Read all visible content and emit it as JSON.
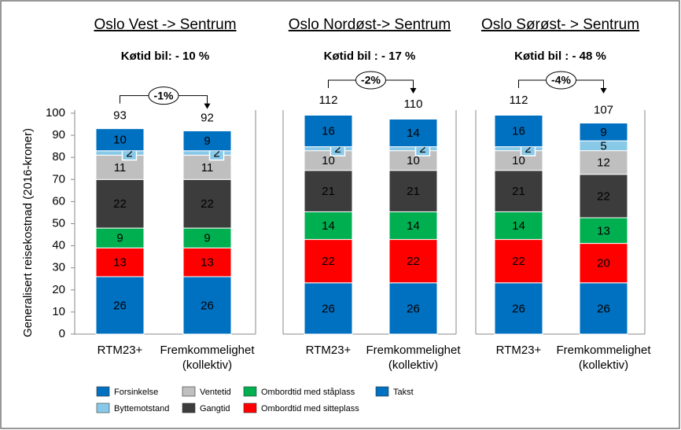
{
  "chart_data": {
    "type": "stacked_bar",
    "ylabel": "Generalisert reisekostnad (2016-kroner)",
    "series": [
      {
        "name": "Takst",
        "color": "#0070c0"
      },
      {
        "name": "Ombordtid med sitteplass",
        "color": "#ff0000"
      },
      {
        "name": "Ombordtid med ståplass",
        "color": "#00b050"
      },
      {
        "name": "Gangtid",
        "color": "#3c3c3c"
      },
      {
        "name": "Ventetid",
        "color": "#bfbfbf"
      },
      {
        "name": "Byttemotstand",
        "color": "#89c9e8"
      },
      {
        "name": "Forsinkelse",
        "color": "#0070c0"
      }
    ],
    "legend_order": [
      6,
      5,
      4,
      3,
      2,
      1,
      0
    ],
    "panels": [
      {
        "title": "Oslo Vest -> Sentrum",
        "subtitle": "Køtid bil: - 10 %",
        "change": "-1%",
        "categories": [
          "RTM23+",
          "Fremkommelighet (kollektiv)"
        ],
        "totals": [
          93,
          92
        ],
        "ylim": [
          0,
          100
        ],
        "yticks": [
          0,
          10,
          20,
          30,
          40,
          50,
          60,
          70,
          80,
          90,
          100
        ],
        "values": [
          [
            26,
            26
          ],
          [
            13,
            13
          ],
          [
            9,
            9
          ],
          [
            22,
            22
          ],
          [
            11,
            11
          ],
          [
            2,
            2
          ],
          [
            10,
            9
          ]
        ]
      },
      {
        "title": "Oslo Nordøst-> Sentrum",
        "subtitle": "Køtid bil : - 17 %",
        "change": "-2%",
        "categories": [
          "RTM23+",
          "Fremkommelighet (kollektiv)"
        ],
        "totals": [
          112,
          110
        ],
        "ylim": [
          0,
          112
        ],
        "values": [
          [
            26,
            26
          ],
          [
            22,
            22
          ],
          [
            14,
            14
          ],
          [
            21,
            21
          ],
          [
            10,
            10
          ],
          [
            2,
            2
          ],
          [
            16,
            14
          ]
        ]
      },
      {
        "title": "Oslo Sørøst- > Sentrum",
        "subtitle": "Køtid bil : - 48 %",
        "change": "-4%",
        "categories": [
          "RTM23+",
          "Fremkommelighet (kollektiv)"
        ],
        "totals": [
          112,
          107
        ],
        "ylim": [
          0,
          112
        ],
        "values": [
          [
            26,
            26
          ],
          [
            22,
            20
          ],
          [
            14,
            13
          ],
          [
            21,
            22
          ],
          [
            10,
            12
          ],
          [
            2,
            5
          ],
          [
            16,
            9
          ]
        ]
      }
    ]
  }
}
